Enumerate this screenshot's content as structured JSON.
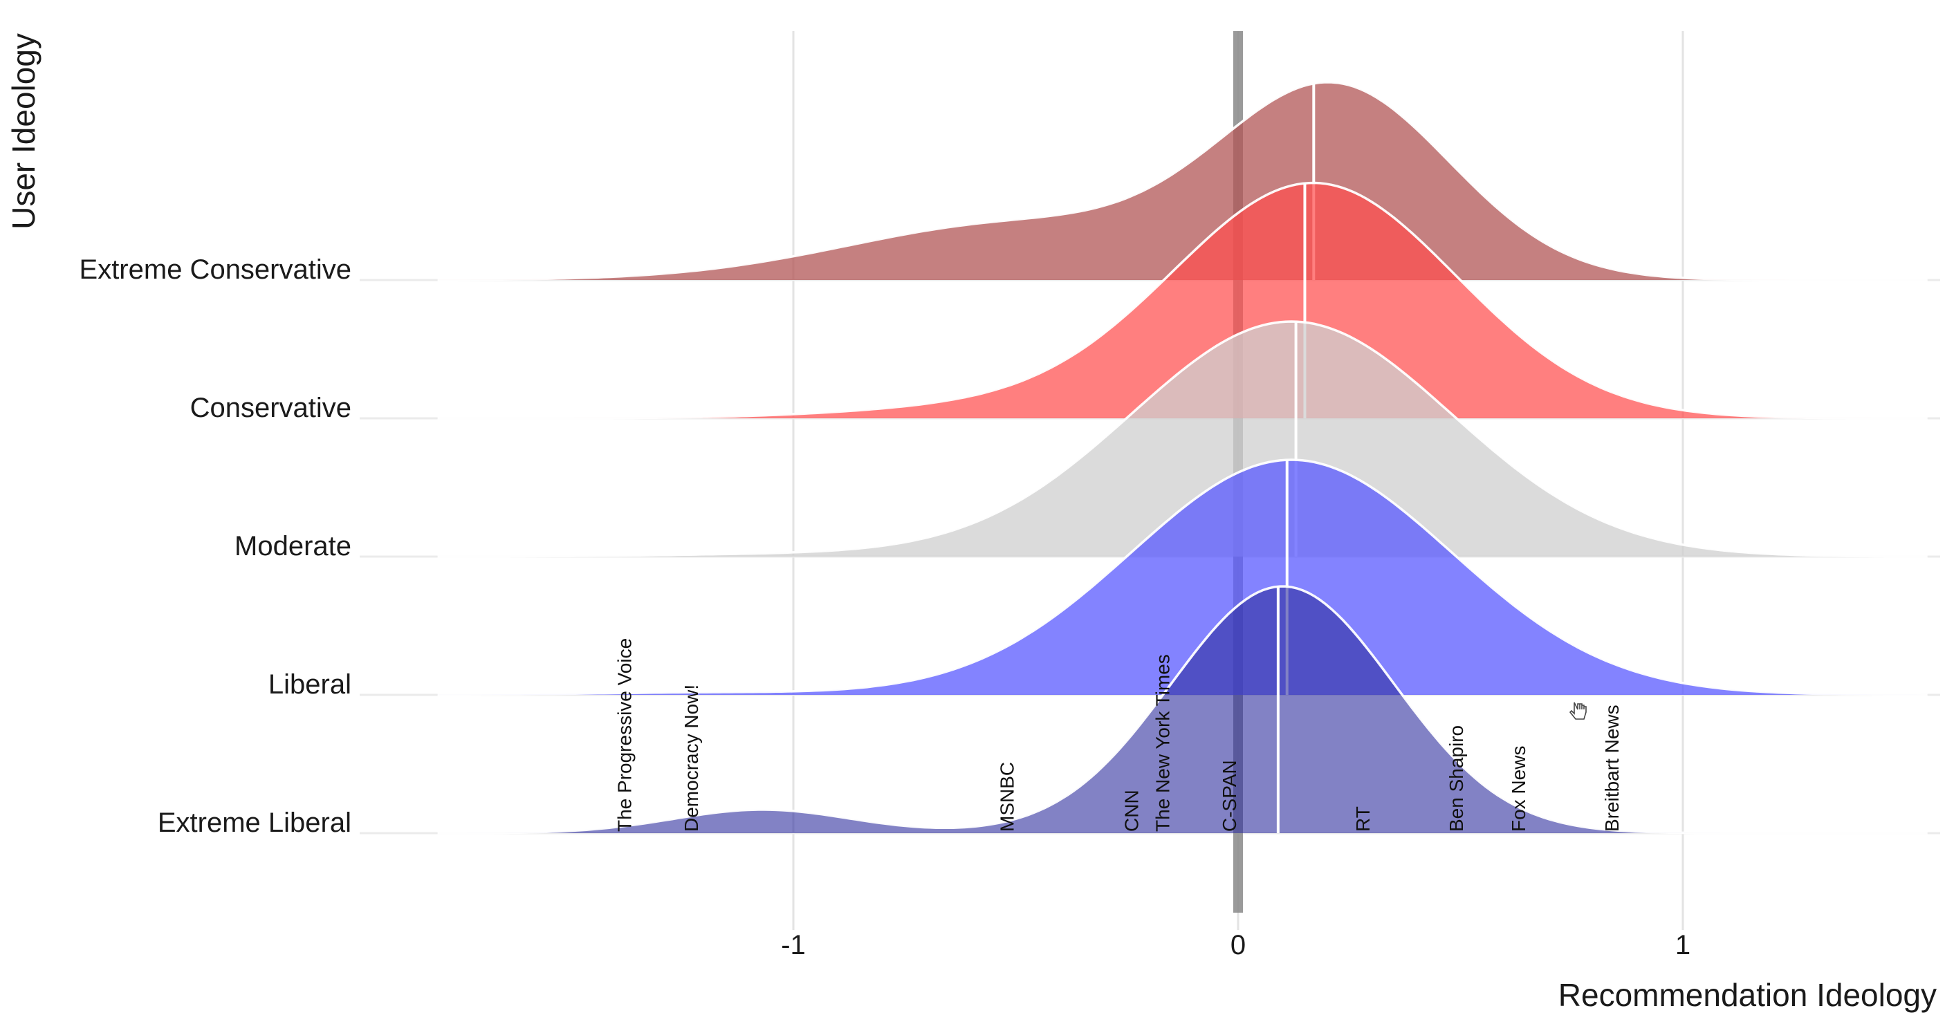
{
  "chart_data": {
    "type": "area",
    "subtype": "ridgeline",
    "xlabel": "Recommendation Ideology",
    "ylabel": "User Ideology",
    "xlim": [
      -1.8,
      1.55
    ],
    "x_ticks": [
      -1,
      0,
      1
    ],
    "x_tick_labels": [
      "-1",
      "0",
      "1"
    ],
    "grid": true,
    "reference_line_x": 0,
    "series": [
      {
        "name": "Extreme Conservative",
        "color": "#b25555",
        "opacity": 0.75,
        "median": 0.17,
        "components": [
          {
            "mean": 0.22,
            "sd": 0.26,
            "height": 0.8
          },
          {
            "mean": -0.5,
            "sd": 0.38,
            "height": 0.24
          }
        ]
      },
      {
        "name": "Conservative",
        "color": "#ff4d4d",
        "opacity": 0.72,
        "median": 0.15,
        "components": [
          {
            "mean": 0.17,
            "sd": 0.32,
            "height": 1.0
          },
          {
            "mean": -0.6,
            "sd": 0.3,
            "height": 0.04
          }
        ]
      },
      {
        "name": "Moderate",
        "color": "#cfcfcf",
        "opacity": 0.75,
        "median": 0.13,
        "components": [
          {
            "mean": 0.12,
            "sd": 0.36,
            "height": 1.0
          },
          {
            "mean": -1.0,
            "sd": 0.3,
            "height": 0.01
          }
        ]
      },
      {
        "name": "Liberal",
        "color": "#5959ff",
        "opacity": 0.75,
        "median": 0.11,
        "components": [
          {
            "mean": 0.12,
            "sd": 0.36,
            "height": 1.0
          },
          {
            "mean": -1.2,
            "sd": 0.25,
            "height": 0.01
          }
        ]
      },
      {
        "name": "Extreme Liberal",
        "color": "#2e2e9e",
        "opacity": 0.6,
        "median": 0.09,
        "components": [
          {
            "mean": 0.1,
            "sd": 0.25,
            "height": 1.05
          },
          {
            "mean": -1.07,
            "sd": 0.2,
            "height": 0.1
          }
        ]
      }
    ],
    "outlets": [
      {
        "name": "The Progressive Voice",
        "x": -1.38
      },
      {
        "name": "Democracy Now!",
        "x": -1.23
      },
      {
        "name": "MSNBC",
        "x": -0.52
      },
      {
        "name": "CNN",
        "x": -0.24
      },
      {
        "name": "The New York Times",
        "x": -0.17
      },
      {
        "name": "C-SPAN",
        "x": -0.02
      },
      {
        "name": "RT",
        "x": 0.28
      },
      {
        "name": "Ben Shapiro",
        "x": 0.49
      },
      {
        "name": "Fox News",
        "x": 0.63
      },
      {
        "name": "Breitbart News",
        "x": 0.84
      }
    ]
  }
}
